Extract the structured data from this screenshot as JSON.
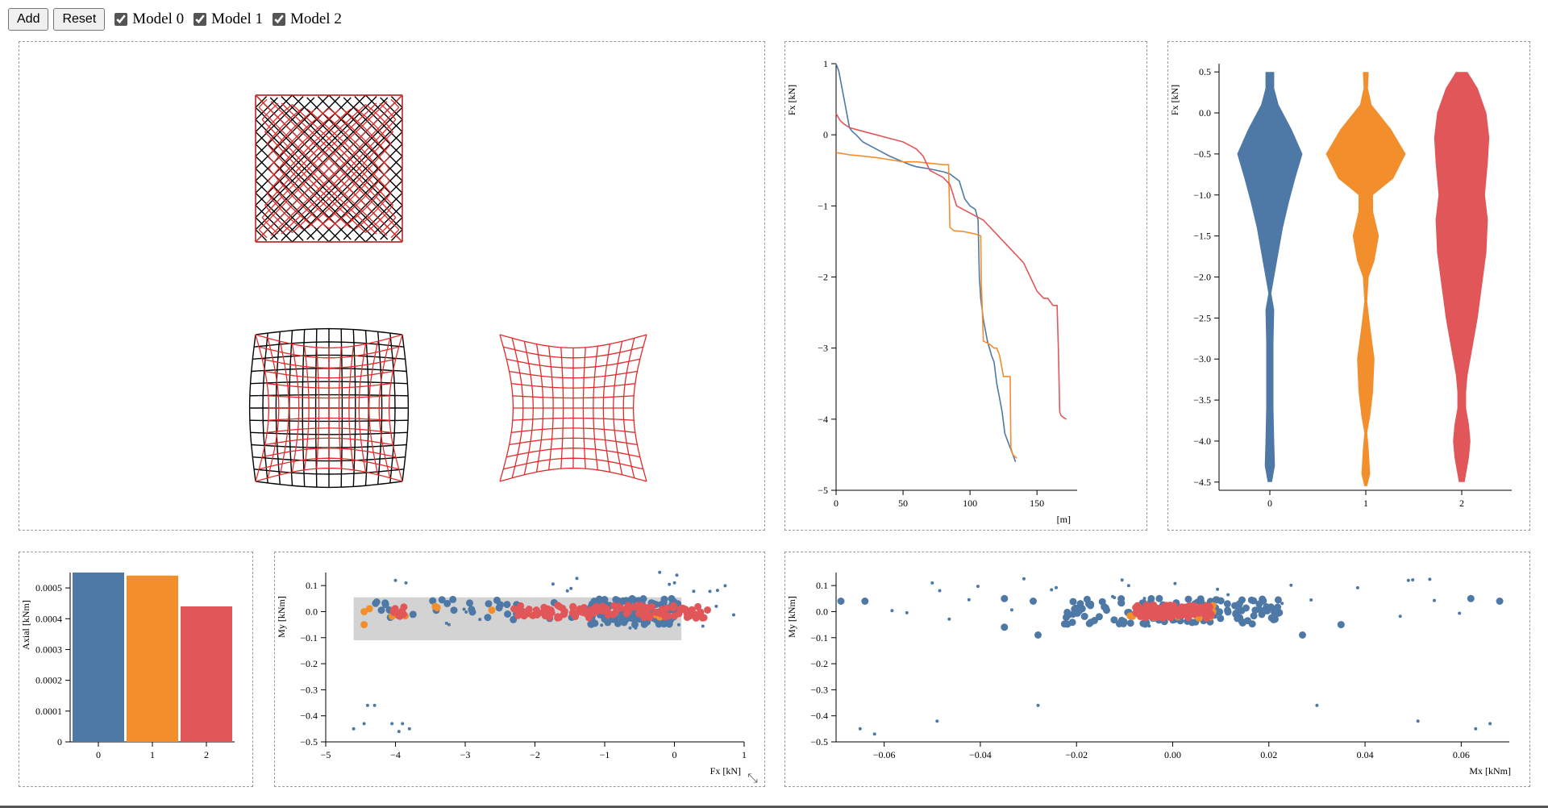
{
  "toolbar": {
    "add_label": "Add",
    "reset_label": "Reset",
    "models": [
      {
        "label": "Model 0",
        "checked": true
      },
      {
        "label": "Model 1",
        "checked": true
      },
      {
        "label": "Model 2",
        "checked": true
      }
    ]
  },
  "colors": {
    "model0": "#4e79a7",
    "model1": "#f28e2b",
    "model2": "#e15759",
    "mesh_original": "#000000",
    "mesh_deformed": "#e32b2b",
    "brush": "#d3d3d3"
  },
  "chart_data": [
    {
      "id": "meshes",
      "type": "diagram",
      "meshes": [
        {
          "layout": "diagonal",
          "deformation": "pillow",
          "reference_visible": true
        },
        {
          "layout": "grid",
          "deformation": "pillow",
          "reference_visible": true
        },
        {
          "layout": "grid",
          "deformation": "pillow",
          "reference_visible": false
        }
      ]
    },
    {
      "id": "sorted-fx",
      "type": "line",
      "xlabel": "[m]",
      "ylabel": "Fx [kN]",
      "xlim": [
        0,
        180
      ],
      "ylim": [
        -5,
        1
      ],
      "xticks": [
        "0",
        "50",
        "100",
        "150"
      ],
      "yticks": [
        "1",
        "0",
        "−1",
        "−2",
        "−3",
        "−4",
        "−5"
      ],
      "series": [
        {
          "color": "#4e79a7",
          "x": [
            0,
            2,
            5,
            8,
            10,
            12,
            15,
            20,
            30,
            40,
            55,
            60,
            70,
            80,
            85,
            92,
            96,
            100,
            104,
            106,
            107,
            108,
            110,
            113,
            116,
            118,
            120,
            122,
            124,
            126,
            128,
            130,
            132,
            134
          ],
          "y": [
            1,
            0.9,
            0.6,
            0.3,
            0.1,
            0.05,
            0,
            -0.1,
            -0.2,
            -0.3,
            -0.42,
            -0.45,
            -0.48,
            -0.52,
            -0.55,
            -0.65,
            -0.9,
            -1.0,
            -1.05,
            -1.2,
            -2.0,
            -2.3,
            -2.6,
            -2.9,
            -3.1,
            -3.2,
            -3.5,
            -3.7,
            -3.9,
            -4.2,
            -4.3,
            -4.4,
            -4.5,
            -4.6
          ]
        },
        {
          "color": "#f28e2b",
          "x": [
            0,
            10,
            20,
            30,
            40,
            50,
            60,
            70,
            80,
            84,
            85,
            88,
            95,
            100,
            105,
            108,
            108.5,
            110,
            115,
            118,
            120,
            122,
            124,
            125,
            128,
            130,
            130.5,
            132,
            135
          ],
          "y": [
            -0.25,
            -0.28,
            -0.3,
            -0.32,
            -0.35,
            -0.38,
            -0.38,
            -0.4,
            -0.42,
            -0.42,
            -1.3,
            -1.35,
            -1.36,
            -1.38,
            -1.4,
            -1.42,
            -2.1,
            -2.9,
            -2.95,
            -3.0,
            -3.0,
            -3.1,
            -3.3,
            -3.4,
            -3.4,
            -3.4,
            -4.4,
            -4.5,
            -4.55
          ]
        },
        {
          "color": "#e15759",
          "x": [
            0,
            3,
            6,
            10,
            20,
            30,
            40,
            50,
            60,
            65,
            70,
            80,
            85,
            90,
            100,
            110,
            115,
            120,
            125,
            130,
            135,
            140,
            145,
            150,
            155,
            158,
            160,
            162,
            165,
            166,
            167,
            168,
            170,
            172
          ],
          "y": [
            0.3,
            0.2,
            0.15,
            0.1,
            0.05,
            0,
            -0.05,
            -0.1,
            -0.2,
            -0.3,
            -0.5,
            -0.6,
            -0.7,
            -1.0,
            -1.1,
            -1.2,
            -1.3,
            -1.4,
            -1.5,
            -1.6,
            -1.7,
            -1.8,
            -2.0,
            -2.2,
            -2.3,
            -2.3,
            -2.35,
            -2.4,
            -2.4,
            -3.0,
            -3.9,
            -3.95,
            -3.98,
            -4.0
          ]
        }
      ]
    },
    {
      "id": "violin-fx",
      "type": "violin",
      "ylabel": "Fx [kN]",
      "categories": [
        "0",
        "1",
        "2"
      ],
      "ylim": [
        -4.6,
        0.6
      ],
      "yticks": [
        "0.5",
        "0.0",
        "−0.5",
        "−1.0",
        "−1.5",
        "−2.0",
        "−2.5",
        "−3.0",
        "−3.5",
        "−4.0",
        "−4.5"
      ],
      "series": [
        {
          "color": "#4e79a7",
          "profile": [
            [
              0.5,
              6
            ],
            [
              0.3,
              6
            ],
            [
              0.1,
              12
            ],
            [
              -0.2,
              30
            ],
            [
              -0.5,
              45
            ],
            [
              -0.8,
              35
            ],
            [
              -1.1,
              26
            ],
            [
              -1.4,
              18
            ],
            [
              -1.7,
              12
            ],
            [
              -2.0,
              6
            ],
            [
              -2.2,
              2
            ],
            [
              -2.4,
              6
            ],
            [
              -2.8,
              5
            ],
            [
              -3.2,
              5
            ],
            [
              -3.6,
              5
            ],
            [
              -4.0,
              6
            ],
            [
              -4.3,
              7
            ],
            [
              -4.5,
              3
            ]
          ]
        },
        {
          "color": "#f28e2b",
          "profile": [
            [
              0.5,
              4
            ],
            [
              0.3,
              3
            ],
            [
              0.1,
              8
            ],
            [
              -0.2,
              35
            ],
            [
              -0.5,
              55
            ],
            [
              -0.8,
              38
            ],
            [
              -1.0,
              10
            ],
            [
              -1.2,
              10
            ],
            [
              -1.5,
              18
            ],
            [
              -1.8,
              12
            ],
            [
              -2.0,
              4
            ],
            [
              -2.3,
              2
            ],
            [
              -2.6,
              6
            ],
            [
              -3.0,
              12
            ],
            [
              -3.4,
              10
            ],
            [
              -3.7,
              6
            ],
            [
              -3.9,
              2
            ],
            [
              -4.1,
              4
            ],
            [
              -4.4,
              6
            ],
            [
              -4.55,
              2
            ]
          ]
        },
        {
          "color": "#e15759",
          "profile": [
            [
              0.5,
              8
            ],
            [
              0.3,
              22
            ],
            [
              0.0,
              34
            ],
            [
              -0.3,
              38
            ],
            [
              -0.6,
              36
            ],
            [
              -1.0,
              32
            ],
            [
              -1.3,
              36
            ],
            [
              -1.7,
              34
            ],
            [
              -2.1,
              28
            ],
            [
              -2.5,
              22
            ],
            [
              -2.9,
              14
            ],
            [
              -3.2,
              8
            ],
            [
              -3.4,
              6
            ],
            [
              -3.6,
              6
            ],
            [
              -3.8,
              10
            ],
            [
              -4.0,
              12
            ],
            [
              -4.2,
              10
            ],
            [
              -4.5,
              4
            ]
          ]
        }
      ]
    },
    {
      "id": "axial-bar",
      "type": "bar",
      "ylabel": "Axial [kNm]",
      "categories": [
        "0",
        "1",
        "2"
      ],
      "values": [
        0.00055,
        0.00054,
        0.00044
      ],
      "colors": [
        "#4e79a7",
        "#f28e2b",
        "#e15759"
      ],
      "ylim": [
        0,
        0.00055
      ],
      "yticks": [
        "0",
        "0.0001",
        "0.0002",
        "0.0003",
        "0.0004",
        "0.0005"
      ]
    },
    {
      "id": "fx-my-scatter",
      "type": "scatter",
      "xlabel": "Fx [kN]",
      "ylabel": "My [kNm]",
      "xlim": [
        -5,
        1
      ],
      "ylim": [
        -0.5,
        0.15
      ],
      "xticks": [
        "−5",
        "−4",
        "−3",
        "−2",
        "−1",
        "0",
        "1"
      ],
      "yticks": [
        "0.1",
        "0.0",
        "−0.1",
        "−0.2",
        "−0.3",
        "−0.4",
        "−0.5"
      ],
      "brush": {
        "x": [
          -4.6,
          0.1
        ],
        "y": [
          -0.11,
          0.055
        ]
      }
    },
    {
      "id": "mx-my-scatter",
      "type": "scatter",
      "xlabel": "Mx [kNm]",
      "ylabel": "My [kNm]",
      "xlim": [
        -0.07,
        0.07
      ],
      "ylim": [
        -0.5,
        0.15
      ],
      "xticks": [
        "−0.06",
        "−0.04",
        "−0.02",
        "0.00",
        "0.02",
        "0.04",
        "0.06"
      ],
      "yticks": [
        "0.1",
        "0.0",
        "−0.1",
        "−0.2",
        "−0.3",
        "−0.4",
        "−0.5"
      ]
    }
  ]
}
